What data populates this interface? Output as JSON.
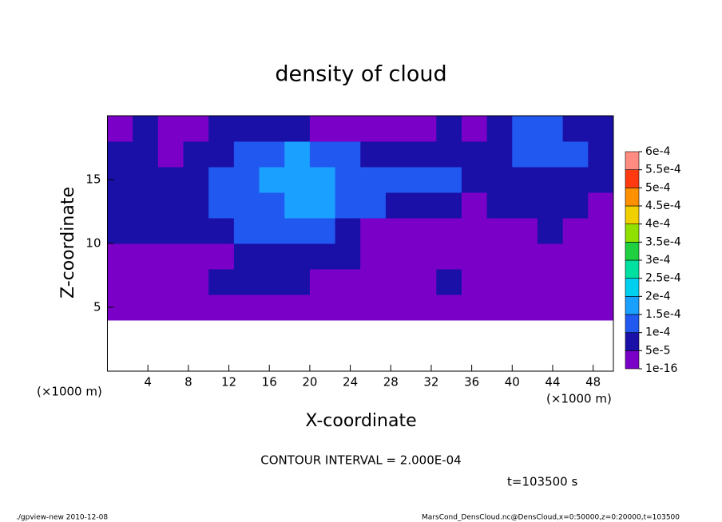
{
  "chart_data": {
    "type": "contour",
    "title": "density of cloud",
    "xlabel": "X-coordinate",
    "ylabel": "Z-coordinate",
    "x_unit": "(×1000 m)",
    "contour_interval": "CONTOUR INTERVAL = 2.000E-04",
    "time": "t=103500 s",
    "footer_left": "./gpview-new   2010-12-08",
    "footer_right": "MarsCond_DensCloud.nc@DensCloud,x=0:50000,z=0:20000,t=103500",
    "xlim": [
      0,
      50
    ],
    "ylim": [
      0,
      20
    ],
    "xticks": [
      4,
      8,
      12,
      16,
      20,
      24,
      28,
      32,
      36,
      40,
      44,
      48
    ],
    "yticks": [
      5,
      10,
      15
    ],
    "x": [
      1.25,
      3.75,
      6.25,
      8.75,
      11.25,
      13.75,
      16.25,
      18.75,
      21.25,
      23.75,
      26.25,
      28.75,
      31.25,
      33.75,
      36.25,
      38.75,
      41.25,
      43.75,
      46.25,
      48.75
    ],
    "y": [
      1,
      3,
      5,
      7,
      9,
      11,
      13,
      15,
      17,
      19
    ],
    "z": [
      [
        null,
        null,
        null,
        null,
        null,
        null,
        null,
        null,
        null,
        null,
        null,
        null,
        null,
        null,
        null,
        null,
        null,
        null,
        null,
        null
      ],
      [
        null,
        null,
        null,
        null,
        null,
        null,
        null,
        null,
        null,
        null,
        null,
        null,
        null,
        null,
        null,
        null,
        null,
        null,
        null,
        null
      ],
      [
        2e-05,
        2e-05,
        2e-05,
        2e-05,
        2e-05,
        2e-05,
        2e-05,
        2e-05,
        2e-05,
        2e-05,
        2e-05,
        2e-05,
        2e-05,
        2e-05,
        2e-05,
        2e-05,
        2e-05,
        2e-05,
        2e-05,
        2e-05
      ],
      [
        2e-05,
        2e-05,
        2e-05,
        2e-05,
        6e-05,
        6e-05,
        6e-05,
        6e-05,
        2e-05,
        2e-05,
        2e-05,
        2e-05,
        2e-05,
        6e-05,
        2e-05,
        2e-05,
        2e-05,
        2e-05,
        2e-05,
        2e-05
      ],
      [
        2e-05,
        2e-05,
        2e-05,
        2e-05,
        2e-05,
        6e-05,
        6e-05,
        6e-05,
        6e-05,
        6e-05,
        2e-05,
        2e-05,
        2e-05,
        2e-05,
        2e-05,
        2e-05,
        2e-05,
        2e-05,
        2e-05,
        2e-05
      ],
      [
        6e-05,
        6e-05,
        6e-05,
        6e-05,
        6e-05,
        0.00012,
        0.00012,
        0.00012,
        0.00012,
        6e-05,
        2e-05,
        2e-05,
        2e-05,
        2e-05,
        2e-05,
        2e-05,
        2e-05,
        6e-05,
        2e-05,
        2e-05
      ],
      [
        6e-05,
        6e-05,
        6e-05,
        6e-05,
        0.00012,
        0.00012,
        0.00012,
        0.00017,
        0.00017,
        0.00012,
        0.00012,
        6e-05,
        6e-05,
        6e-05,
        2e-05,
        6e-05,
        6e-05,
        6e-05,
        6e-05,
        2e-05
      ],
      [
        6e-05,
        6e-05,
        6e-05,
        6e-05,
        0.00012,
        0.00012,
        0.00017,
        0.00017,
        0.00017,
        0.00012,
        0.00012,
        0.00012,
        0.00012,
        0.00012,
        6e-05,
        6e-05,
        6e-05,
        6e-05,
        6e-05,
        6e-05
      ],
      [
        6e-05,
        6e-05,
        2e-05,
        6e-05,
        6e-05,
        0.00012,
        0.00012,
        0.00017,
        0.00012,
        0.00012,
        6e-05,
        6e-05,
        6e-05,
        6e-05,
        6e-05,
        6e-05,
        0.00012,
        0.00012,
        0.00012,
        6e-05
      ],
      [
        2e-05,
        6e-05,
        2e-05,
        2e-05,
        6e-05,
        6e-05,
        6e-05,
        6e-05,
        2e-05,
        2e-05,
        2e-05,
        2e-05,
        2e-05,
        6e-05,
        2e-05,
        6e-05,
        0.00012,
        0.00012,
        6e-05,
        6e-05
      ]
    ],
    "levels": [
      {
        "value": 1e-16,
        "label": "1e-16"
      },
      {
        "value": 5e-05,
        "label": "5e-5"
      },
      {
        "value": 0.0001,
        "label": "1e-4"
      },
      {
        "value": 0.00015,
        "label": "1.5e-4"
      },
      {
        "value": 0.0002,
        "label": "2e-4"
      },
      {
        "value": 0.00025,
        "label": "2.5e-4"
      },
      {
        "value": 0.0003,
        "label": "3e-4"
      },
      {
        "value": 0.00035,
        "label": "3.5e-4"
      },
      {
        "value": 0.0004,
        "label": "4e-4"
      },
      {
        "value": 0.00045,
        "label": "4.5e-4"
      },
      {
        "value": 0.0005,
        "label": "5e-4"
      },
      {
        "value": 0.00055,
        "label": "5.5e-4"
      },
      {
        "value": 0.0006,
        "label": "6e-4"
      }
    ],
    "level_colors": [
      "#7a00c8",
      "#1a10a8",
      "#2058f0",
      "#1aa0ff",
      "#00d0f0",
      "#00e0a0",
      "#20d040",
      "#90e000",
      "#f0d000",
      "#ff9000",
      "#ff3a10",
      "#ff8c80"
    ]
  }
}
